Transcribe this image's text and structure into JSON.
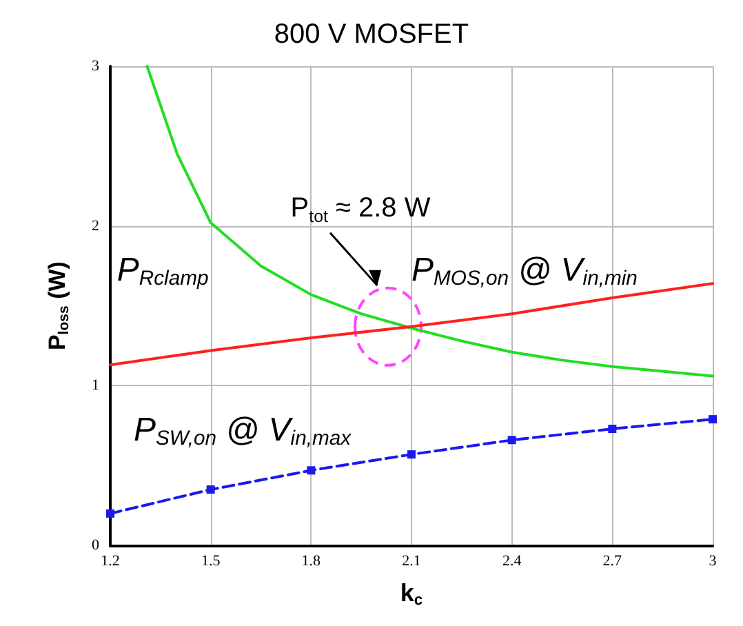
{
  "chart_data": {
    "type": "line",
    "title": "800 V MOSFET",
    "xlabel": "k$_{c}$",
    "ylabel": "P$_{loss}$ (W)",
    "xlim": [
      1.2,
      3
    ],
    "xticks": [
      1.2,
      1.5,
      1.8,
      2.1,
      2.4,
      2.7,
      3
    ],
    "ylim": [
      0,
      3
    ],
    "yticks": [
      0,
      1,
      2,
      3
    ],
    "grid": true,
    "legend": false,
    "marker": "none",
    "line_style": "solid",
    "series": [
      {
        "name": "P$_{Rclamp}$",
        "color": "#22dd22",
        "x": [
          1.31,
          1.4,
          1.5,
          1.65,
          1.8,
          1.95,
          2.1,
          2.25,
          2.4,
          2.55,
          2.7,
          2.85,
          3.0
        ],
        "values": [
          3,
          2.45,
          2.02,
          1.75,
          1.57,
          1.45,
          1.36,
          1.28,
          1.21,
          1.16,
          1.12,
          1.09,
          1.06
        ]
      },
      {
        "name": "P$_{MOS,on}$ @ V$_{in,min}$",
        "color": "#ff2020",
        "x": [
          1.2,
          1.5,
          1.8,
          2.1,
          2.4,
          2.7,
          3.0
        ],
        "values": [
          1.13,
          1.22,
          1.3,
          1.37,
          1.45,
          1.55,
          1.64
        ]
      },
      {
        "name": "P$_{SW,on}$ @ V$_{in,max}$",
        "color": "#1a1aee",
        "line_style": "dashed",
        "marker": "square",
        "x": [
          1.2,
          1.5,
          1.8,
          2.1,
          2.4,
          2.7,
          3.0
        ],
        "values": [
          0.2,
          0.35,
          0.47,
          0.57,
          0.66,
          0.73,
          0.79
        ]
      }
    ],
    "annotations": [
      "P$_{tot}$ ≈ 2.8 W"
    ]
  }
}
